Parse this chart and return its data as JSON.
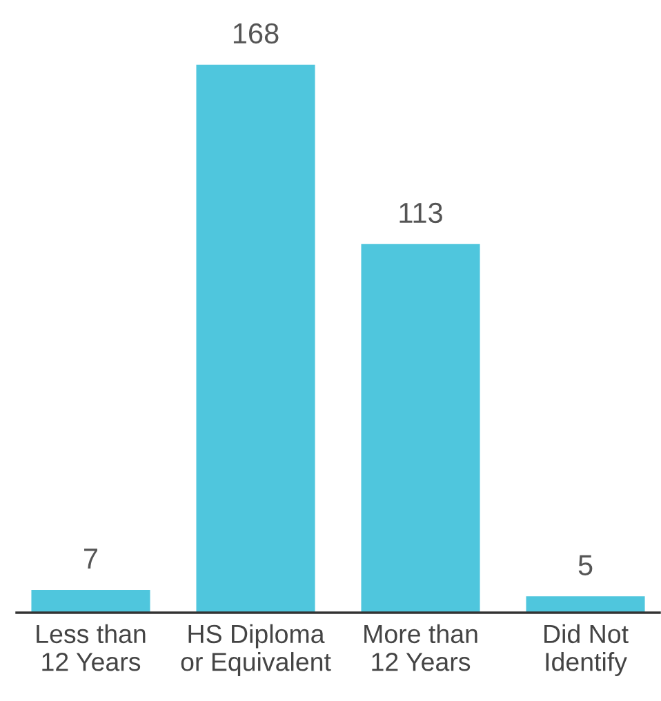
{
  "chart_data": {
    "type": "bar",
    "categories": [
      "Less than\n12 Years",
      "HS Diploma\nor Equivalent",
      "More than\n12 Years",
      "Did Not\nIdentify"
    ],
    "values": [
      7,
      168,
      113,
      5
    ],
    "color": "#4fc6dd",
    "data_labels": true,
    "grid": false,
    "legend": false
  }
}
